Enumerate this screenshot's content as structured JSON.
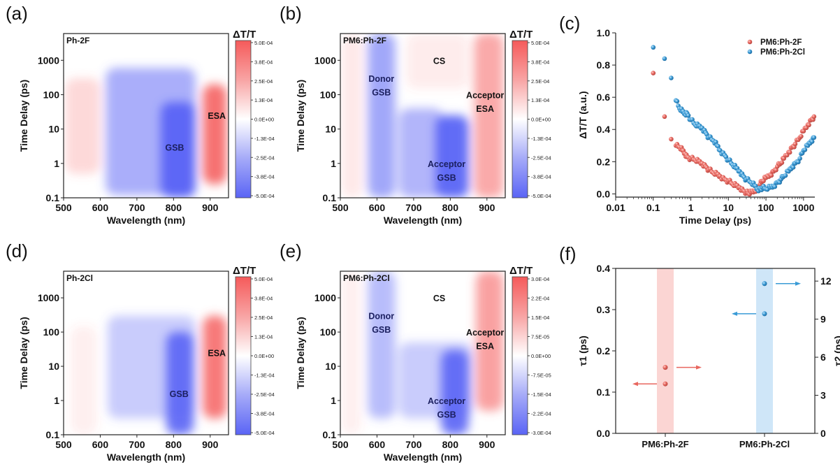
{
  "figure": {
    "panels": [
      "(a)",
      "(b)",
      "(c)",
      "(d)",
      "(e)",
      "(f)"
    ]
  },
  "chart_data": [
    {
      "id": "a",
      "panel_label": "(a)",
      "type": "heatmap",
      "sample_label": "Ph-2F",
      "xlabel": "Wavelength (nm)",
      "ylabel": "Time Delay (ps)",
      "xlim": [
        500,
        950
      ],
      "ylim": [
        0.1,
        6000
      ],
      "yscale": "log",
      "xticks": [
        "500",
        "600",
        "700",
        "800",
        "900"
      ],
      "yticks": [
        "0.1",
        "1",
        "10",
        "100",
        "1000"
      ],
      "colorbar": {
        "title": "ΔT/T",
        "range": [
          -0.0005,
          0.0005
        ],
        "ticks": [
          "5.0E-04",
          "3.8E-04",
          "2.5E-04",
          "1.3E-04",
          "0.0E+00",
          "-1.3E-04",
          "-2.5E-04",
          "-3.8E-04",
          "-5.0E-04"
        ],
        "positive_color": "#f55a5a",
        "negative_color": "#5a64f5"
      },
      "annotations": [
        {
          "text": "GSB",
          "x": 803,
          "y": 3
        },
        {
          "text": "ESA",
          "x": 918,
          "y": 25
        }
      ],
      "features": [
        {
          "sign": "positive",
          "x": [
            505,
            600
          ],
          "t": [
            0.5,
            300
          ],
          "strength": 0.25
        },
        {
          "sign": "negative",
          "x": [
            615,
            860
          ],
          "t": [
            0.12,
            600
          ],
          "strength": 0.55
        },
        {
          "sign": "negative",
          "x": [
            765,
            860
          ],
          "t": [
            0.1,
            60
          ],
          "strength": 1.0
        },
        {
          "sign": "positive",
          "x": [
            880,
            945
          ],
          "t": [
            0.25,
            200
          ],
          "strength": 0.9
        }
      ]
    },
    {
      "id": "b",
      "panel_label": "(b)",
      "type": "heatmap",
      "sample_label": "PM6:Ph-2F",
      "xlabel": "Wavelength (nm)",
      "ylabel": "Time Delay (ps)",
      "xlim": [
        500,
        950
      ],
      "ylim": [
        0.1,
        6000
      ],
      "yscale": "log",
      "xticks": [
        "500",
        "600",
        "700",
        "800",
        "900"
      ],
      "yticks": [
        "0.1",
        "1",
        "10",
        "100",
        "1000"
      ],
      "colorbar": {
        "title": "ΔT/T",
        "range": [
          -0.0005,
          0.0005
        ],
        "ticks": [
          "5.0E-04",
          "3.8E-04",
          "2.5E-04",
          "1.3E-04",
          "0.0E+00",
          "-1.3E-04",
          "-2.5E-04",
          "-3.8E-04",
          "-5.0E-04"
        ],
        "positive_color": "#f55a5a",
        "negative_color": "#5a64f5"
      },
      "annotations": [
        {
          "text": "CS",
          "x": 770,
          "y": 1000
        },
        {
          "text": "Donor",
          "x": 612,
          "y": 300
        },
        {
          "text": "GSB",
          "x": 612,
          "y": 120
        },
        {
          "text": "Acceptor",
          "x": 895,
          "y": 100
        },
        {
          "text": "ESA",
          "x": 895,
          "y": 40
        },
        {
          "text": "Acceptor",
          "x": 790,
          "y": 1.0
        },
        {
          "text": "GSB",
          "x": 790,
          "y": 0.4
        }
      ],
      "features": [
        {
          "sign": "positive",
          "x": [
            505,
            560
          ],
          "t": [
            0.1,
            6000
          ],
          "strength": 0.15
        },
        {
          "sign": "negative",
          "x": [
            575,
            650
          ],
          "t": [
            0.1,
            6000
          ],
          "strength": 0.6
        },
        {
          "sign": "negative",
          "x": [
            660,
            780
          ],
          "t": [
            0.1,
            40
          ],
          "strength": 0.5
        },
        {
          "sign": "negative",
          "x": [
            760,
            850
          ],
          "t": [
            0.1,
            25
          ],
          "strength": 1.0
        },
        {
          "sign": "positive",
          "x": [
            680,
            850
          ],
          "t": [
            150,
            6000
          ],
          "strength": 0.12
        },
        {
          "sign": "positive",
          "x": [
            865,
            945
          ],
          "t": [
            0.1,
            6000
          ],
          "strength": 0.55
        }
      ]
    },
    {
      "id": "c",
      "panel_label": "(c)",
      "type": "scatter",
      "xlabel": "Time Delay (ps)",
      "ylabel": "ΔT/T (a.u.)",
      "xscale": "log",
      "xlim": [
        0.01,
        2000
      ],
      "ylim": [
        -0.02,
        1.0
      ],
      "xticks": [
        "0.01",
        "0.1",
        "1",
        "10",
        "100",
        "1000"
      ],
      "yticks": [
        "0.0",
        "0.2",
        "0.4",
        "0.6",
        "0.8",
        "1.0"
      ],
      "legend_position": "top-right",
      "series": [
        {
          "name": "PM6:Ph-2F",
          "color": "#e8675f",
          "x": [
            0.1,
            0.2,
            0.3,
            0.4,
            0.5,
            0.6,
            0.7,
            0.8,
            1,
            1.3,
            1.6,
            2,
            2.5,
            3,
            4,
            5,
            6,
            8,
            10,
            13,
            16,
            20,
            25,
            30,
            35,
            40,
            50,
            60,
            70,
            80,
            100,
            130,
            160,
            200,
            250,
            300,
            400,
            500,
            600,
            800,
            1000,
            1300,
            1600,
            1900
          ],
          "y": [
            0.75,
            0.48,
            0.34,
            0.3,
            0.29,
            0.27,
            0.25,
            0.23,
            0.22,
            0.21,
            0.2,
            0.19,
            0.17,
            0.15,
            0.13,
            0.12,
            0.11,
            0.09,
            0.08,
            0.06,
            0.05,
            0.04,
            0.02,
            0.01,
            0.0,
            0.01,
            0.02,
            0.04,
            0.06,
            0.08,
            0.1,
            0.12,
            0.14,
            0.17,
            0.19,
            0.22,
            0.26,
            0.29,
            0.31,
            0.35,
            0.39,
            0.43,
            0.46,
            0.48
          ]
        },
        {
          "name": "PM6:Ph-2Cl",
          "color": "#3a9bd6",
          "x": [
            0.1,
            0.2,
            0.3,
            0.4,
            0.5,
            0.6,
            0.7,
            0.8,
            1,
            1.3,
            1.6,
            2,
            2.5,
            3,
            4,
            5,
            6,
            8,
            10,
            13,
            16,
            20,
            25,
            30,
            40,
            50,
            60,
            70,
            80,
            100,
            130,
            160,
            200,
            250,
            300,
            400,
            500,
            600,
            800,
            1000,
            1300,
            1600,
            1900
          ],
          "y": [
            0.91,
            0.84,
            0.72,
            0.58,
            0.53,
            0.51,
            0.5,
            0.5,
            0.46,
            0.43,
            0.42,
            0.41,
            0.38,
            0.35,
            0.33,
            0.3,
            0.27,
            0.24,
            0.21,
            0.18,
            0.16,
            0.14,
            0.11,
            0.09,
            0.07,
            0.05,
            0.03,
            0.03,
            0.04,
            0.03,
            0.04,
            0.05,
            0.07,
            0.09,
            0.11,
            0.14,
            0.17,
            0.19,
            0.22,
            0.27,
            0.3,
            0.33,
            0.35
          ]
        }
      ]
    },
    {
      "id": "d",
      "panel_label": "(d)",
      "type": "heatmap",
      "sample_label": "Ph-2Cl",
      "xlabel": "Wavelength (nm)",
      "ylabel": "Time Delay (ps)",
      "xlim": [
        500,
        950
      ],
      "ylim": [
        0.1,
        6000
      ],
      "yscale": "log",
      "xticks": [
        "500",
        "600",
        "700",
        "800",
        "900"
      ],
      "yticks": [
        "0.1",
        "1",
        "10",
        "100",
        "1000"
      ],
      "colorbar": {
        "title": "ΔT/T",
        "range": [
          -0.0005,
          0.0005
        ],
        "ticks": [
          "5.0E-04",
          "3.8E-04",
          "2.5E-04",
          "1.3E-04",
          "0.0E+00",
          "-1.3E-04",
          "-2.5E-04",
          "-3.8E-04",
          "-5.0E-04"
        ],
        "positive_color": "#f55a5a",
        "negative_color": "#5a64f5"
      },
      "annotations": [
        {
          "text": "GSB",
          "x": 815,
          "y": 1.6
        },
        {
          "text": "ESA",
          "x": 918,
          "y": 25
        }
      ],
      "features": [
        {
          "sign": "positive",
          "x": [
            520,
            590
          ],
          "t": [
            0.1,
            150
          ],
          "strength": 0.1
        },
        {
          "sign": "negative",
          "x": [
            620,
            860
          ],
          "t": [
            0.3,
            300
          ],
          "strength": 0.35
        },
        {
          "sign": "negative",
          "x": [
            780,
            855
          ],
          "t": [
            0.1,
            100
          ],
          "strength": 0.95
        },
        {
          "sign": "positive",
          "x": [
            880,
            945
          ],
          "t": [
            0.3,
            300
          ],
          "strength": 0.85
        }
      ]
    },
    {
      "id": "e",
      "panel_label": "(e)",
      "type": "heatmap",
      "sample_label": "PM6:Ph-2Cl",
      "xlabel": "Wavelength (nm)",
      "ylabel": "Time Delay (ps)",
      "xlim": [
        500,
        950
      ],
      "ylim": [
        0.1,
        6000
      ],
      "yscale": "log",
      "xticks": [
        "500",
        "600",
        "700",
        "800",
        "900"
      ],
      "yticks": [
        "0.1",
        "1",
        "10",
        "100",
        "1000"
      ],
      "colorbar": {
        "title": "ΔT/T",
        "range": [
          -0.0003,
          0.0003
        ],
        "ticks": [
          "3.0E-04",
          "2.2E-04",
          "1.5E-04",
          "7.5E-05",
          "0.0E+00",
          "-7.5E-05",
          "-1.5E-04",
          "-2.2E-04",
          "-3.0E-04"
        ],
        "positive_color": "#f55a5a",
        "negative_color": "#5a64f5"
      },
      "annotations": [
        {
          "text": "CS",
          "x": 770,
          "y": 1000
        },
        {
          "text": "Donor",
          "x": 612,
          "y": 300
        },
        {
          "text": "GSB",
          "x": 612,
          "y": 120
        },
        {
          "text": "Acceptor",
          "x": 895,
          "y": 100
        },
        {
          "text": "ESA",
          "x": 895,
          "y": 40
        },
        {
          "text": "Acceptor",
          "x": 790,
          "y": 1.0
        },
        {
          "text": "GSB",
          "x": 790,
          "y": 0.4
        }
      ],
      "features": [
        {
          "sign": "positive",
          "x": [
            505,
            555
          ],
          "t": [
            0.1,
            6000
          ],
          "strength": 0.1
        },
        {
          "sign": "negative",
          "x": [
            575,
            650
          ],
          "t": [
            0.3,
            6000
          ],
          "strength": 0.45
        },
        {
          "sign": "negative",
          "x": [
            660,
            860
          ],
          "t": [
            0.3,
            50
          ],
          "strength": 0.35
        },
        {
          "sign": "negative",
          "x": [
            775,
            850
          ],
          "t": [
            0.1,
            30
          ],
          "strength": 0.95
        },
        {
          "sign": "positive",
          "x": [
            870,
            945
          ],
          "t": [
            0.5,
            6000
          ],
          "strength": 0.6
        }
      ]
    },
    {
      "id": "f",
      "panel_label": "(f)",
      "type": "scatter",
      "categories": [
        "PM6:Ph-2F",
        "PM6:Ph-2Cl"
      ],
      "ylabel_left": "τ1 (ps)",
      "ylabel_right": "τ2 (ps)",
      "ylim_left": [
        0,
        0.4
      ],
      "ylim_right": [
        0,
        13
      ],
      "yticks_left": [
        "0.0",
        "0.1",
        "0.2",
        "0.3",
        "0.4"
      ],
      "yticks_right": [
        "0",
        "3",
        "6",
        "9",
        "12"
      ],
      "band_colors": [
        "#fbd5d3",
        "#cfe6f8"
      ],
      "series": [
        {
          "name": "τ1",
          "axis": "left",
          "values": [
            0.12,
            0.29
          ],
          "colors": [
            "#e8675f",
            "#3a9bd6"
          ]
        },
        {
          "name": "τ2",
          "axis": "right",
          "values": [
            5.2,
            11.8
          ],
          "colors": [
            "#e8675f",
            "#3a9bd6"
          ]
        }
      ]
    }
  ]
}
